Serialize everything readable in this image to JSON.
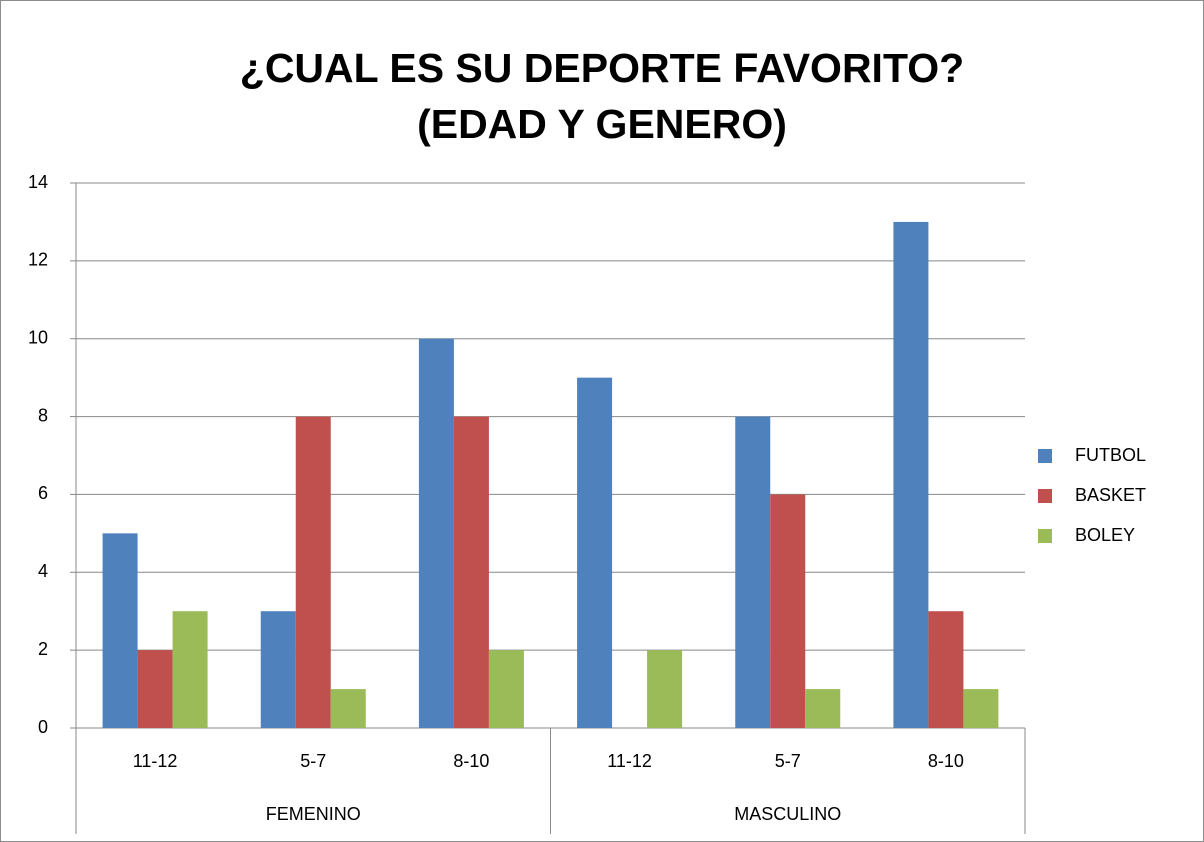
{
  "chart_data": {
    "type": "bar",
    "title": "¿CUAL ES SU DEPORTE FAVORITO? (EDAD Y GENERO)",
    "categories": [
      "11-12",
      "5-7",
      "8-10",
      "11-12",
      "5-7",
      "8-10"
    ],
    "group_labels": [
      "FEMENINO",
      "MASCULINO"
    ],
    "series": [
      {
        "name": "FUTBOL",
        "color": "#4f81bd",
        "values": [
          5,
          3,
          10,
          9,
          8,
          13
        ]
      },
      {
        "name": "BASKET",
        "color": "#c0504d",
        "values": [
          2,
          8,
          8,
          0,
          6,
          3
        ]
      },
      {
        "name": "BOLEY",
        "color": "#9bbb59",
        "values": [
          3,
          1,
          2,
          2,
          1,
          1
        ]
      }
    ],
    "ylim": [
      0,
      14
    ],
    "yticks": [
      0,
      2,
      4,
      6,
      8,
      10,
      12,
      14
    ],
    "grid": true,
    "legend": "right"
  }
}
